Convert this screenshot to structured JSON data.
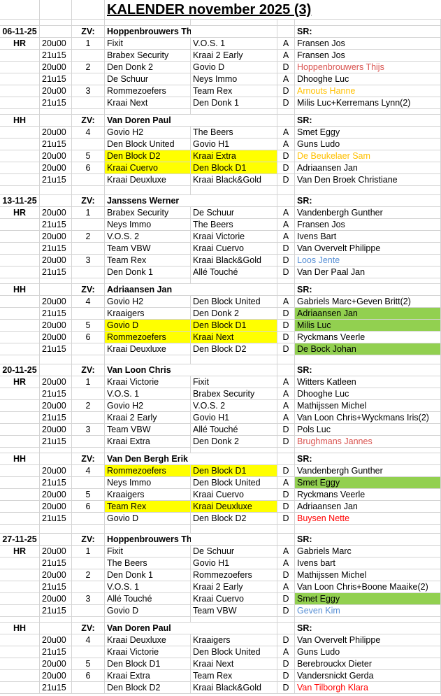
{
  "title": "KALENDER november 2025 (3)",
  "labels": {
    "zv": "ZV:",
    "sr": "SR:"
  },
  "colors": {
    "highlight_match": "#ffff00",
    "highlight_ref": "#92d050",
    "ref_red_soft": "#d9534f",
    "ref_red": "#ff0000",
    "ref_orange": "#ffc000",
    "ref_blue": "#558ed5"
  },
  "weeks": [
    {
      "date": "06-11-25",
      "blocks": [
        {
          "hall": "HR",
          "zv": "Hoppenbrouwers Thijs",
          "games": [
            {
              "time": "20u00",
              "field": "1",
              "home": "Fixit",
              "away": "V.O.S. 1",
              "div": "A",
              "ref": "Fransen Jos"
            },
            {
              "time": "21u15",
              "field": "",
              "home": "Brabex Security",
              "away": "Kraai 2 Early",
              "div": "A",
              "ref": "Fransen Jos"
            },
            {
              "time": "20u00",
              "field": "2",
              "home": "Den Donk 2",
              "away": "Govio D",
              "div": "D",
              "ref": "Hoppenbrouwers Thijs",
              "ref_color": "#d9534f"
            },
            {
              "time": "21u15",
              "field": "",
              "home": "De Schuur",
              "away": "Neys Immo",
              "div": "A",
              "ref": "Dhooghe Luc"
            },
            {
              "time": "20u00",
              "field": "3",
              "home": "Rommezoefers",
              "away": "Team Rex",
              "div": "D",
              "ref": "Arnouts Hanne",
              "ref_color": "#ffc000"
            },
            {
              "time": "21u15",
              "field": "",
              "home": "Kraai Next",
              "away": "Den Donk 1",
              "div": "D",
              "ref": "Milis Luc+Kerremans Lynn(2)"
            }
          ]
        },
        {
          "hall": "HH",
          "zv": "Van Doren Paul",
          "games": [
            {
              "time": "20u00",
              "field": "4",
              "home": "Govio H2",
              "away": "The Beers",
              "div": "A",
              "ref": "Smet Eggy"
            },
            {
              "time": "21u15",
              "field": "",
              "home": "Den Block United",
              "away": "Govio H1",
              "div": "A",
              "ref": "Guns Ludo"
            },
            {
              "time": "20u00",
              "field": "5",
              "home": "Den Block D2",
              "away": "Kraai Extra",
              "div": "D",
              "ref": "De Beukelaer Sam",
              "ref_color": "#ffc000",
              "match_hl": true
            },
            {
              "time": "20u00",
              "field": "6",
              "home": "Kraai Cuervo",
              "away": "Den Block D1",
              "div": "D",
              "ref": "Adriaansen Jan",
              "match_hl": true
            },
            {
              "time": "21u15",
              "field": "",
              "home": "Kraai Deuxluxe",
              "away": "Kraai Black&Gold",
              "div": "D",
              "ref": "Van Den Broek Christiane"
            }
          ]
        }
      ]
    },
    {
      "date": "13-11-25",
      "blocks": [
        {
          "hall": "HR",
          "zv": "Janssens Werner",
          "games": [
            {
              "time": "20u00",
              "field": "1",
              "home": "Brabex Security",
              "away": "De Schuur",
              "div": "A",
              "ref": "Vandenbergh Gunther"
            },
            {
              "time": "21u15",
              "field": "",
              "home": "Neys Immo",
              "away": "The Beers",
              "div": "A",
              "ref": "Fransen Jos"
            },
            {
              "time": "20u00",
              "field": "2",
              "home": "V.O.S. 2",
              "away": "Kraai Victorie",
              "div": "A",
              "ref": "Ivens Bart"
            },
            {
              "time": "21u15",
              "field": "",
              "home": "Team VBW",
              "away": "Kraai Cuervo",
              "div": "D",
              "ref": "Van Overvelt Philippe"
            },
            {
              "time": "20u00",
              "field": "3",
              "home": "Team Rex",
              "away": "Kraai Black&Gold",
              "div": "D",
              "ref": "Loos Jente",
              "ref_color": "#558ed5"
            },
            {
              "time": "21u15",
              "field": "",
              "home": "Den Donk 1",
              "away": "Allé Touché",
              "div": "D",
              "ref": "Van Der Paal Jan"
            }
          ]
        },
        {
          "hall": "HH",
          "zv": "Adriaansen Jan",
          "games": [
            {
              "time": "20u00",
              "field": "4",
              "home": "Govio H2",
              "away": "Den Block United",
              "div": "A",
              "ref": "Gabriels Marc+Geven Britt(2)"
            },
            {
              "time": "21u15",
              "field": "",
              "home": "Kraaigers",
              "away": "Den Donk 2",
              "div": "D",
              "ref": "Adriaansen Jan",
              "ref_hl": true
            },
            {
              "time": "20u00",
              "field": "5",
              "home": "Govio D",
              "away": "Den Block D1",
              "div": "D",
              "ref": "Milis Luc",
              "ref_hl": true,
              "match_hl": true
            },
            {
              "time": "20u00",
              "field": "6",
              "home": "Rommezoefers",
              "away": "Kraai Next",
              "div": "D",
              "ref": "Ryckmans Veerle",
              "match_hl": true
            },
            {
              "time": "21u15",
              "field": "",
              "home": "Kraai Deuxluxe",
              "away": "Den Block D2",
              "div": "D",
              "ref": "De Bock Johan",
              "ref_hl": true
            }
          ]
        }
      ]
    },
    {
      "date": "20-11-25",
      "blocks": [
        {
          "hall": "HR",
          "zv": "Van Loon Chris",
          "games": [
            {
              "time": "20u00",
              "field": "1",
              "home": "Kraai Victorie",
              "away": "Fixit",
              "div": "A",
              "ref": "Witters Katleen"
            },
            {
              "time": "21u15",
              "field": "",
              "home": "V.O.S. 1",
              "away": "Brabex Security",
              "div": "A",
              "ref": "Dhooghe Luc"
            },
            {
              "time": "20u00",
              "field": "2",
              "home": "Govio H2",
              "away": "V.O.S. 2",
              "div": "A",
              "ref": "Mathijssen Michel"
            },
            {
              "time": "21u15",
              "field": "",
              "home": "Kraai 2 Early",
              "away": "Govio H1",
              "div": "A",
              "ref": "Van Loon Chris+Wyckmans Iris(2)"
            },
            {
              "time": "20u00",
              "field": "3",
              "home": "Team VBW",
              "away": "Allé Touché",
              "div": "D",
              "ref": "Pols Luc"
            },
            {
              "time": "21u15",
              "field": "",
              "home": "Kraai Extra",
              "away": "Den Donk 2",
              "div": "D",
              "ref": "Brughmans Jannes",
              "ref_color": "#d9534f"
            }
          ]
        },
        {
          "hall": "HH",
          "zv": "Van Den Bergh Erik",
          "games": [
            {
              "time": "20u00",
              "field": "4",
              "home": "Rommezoefers",
              "away": "Den Block D1",
              "div": "D",
              "ref": "Vandenbergh Gunther",
              "match_hl": true
            },
            {
              "time": "21u15",
              "field": "",
              "home": "Neys Immo",
              "away": "Den Block United",
              "div": "A",
              "ref": "Smet Eggy",
              "ref_hl": true
            },
            {
              "time": "20u00",
              "field": "5",
              "home": "Kraaigers",
              "away": "Kraai Cuervo",
              "div": "D",
              "ref": "Ryckmans Veerle"
            },
            {
              "time": "20u00",
              "field": "6",
              "home": "Team Rex",
              "away": "Kraai Deuxluxe",
              "div": "D",
              "ref": "Adriaansen Jan",
              "match_hl": true
            },
            {
              "time": "21u15",
              "field": "",
              "home": "Govio D",
              "away": "Den Block D2",
              "div": "D",
              "ref": "Buysen Nette",
              "ref_color": "#ff0000"
            }
          ]
        }
      ]
    },
    {
      "date": "27-11-25",
      "blocks": [
        {
          "hall": "HR",
          "zv": "Hoppenbrouwers Thijs",
          "games": [
            {
              "time": "20u00",
              "field": "1",
              "home": "Fixit",
              "away": "De Schuur",
              "div": "A",
              "ref": "Gabriels Marc"
            },
            {
              "time": "21u15",
              "field": "",
              "home": "The Beers",
              "away": "Govio H1",
              "div": "A",
              "ref": "Ivens bart"
            },
            {
              "time": "20u00",
              "field": "2",
              "home": "Den Donk 1",
              "away": "Rommezoefers",
              "div": "D",
              "ref": "Mathijssen Michel"
            },
            {
              "time": "21u15",
              "field": "",
              "home": "V.O.S. 1",
              "away": "Kraai 2 Early",
              "div": "A",
              "ref": "Van Loon Chris+Boone Maaike(2)"
            },
            {
              "time": "20u00",
              "field": "3",
              "home": "Allé Touché",
              "away": "Kraai Cuervo",
              "div": "D",
              "ref": "Smet Eggy",
              "ref_hl": true
            },
            {
              "time": "21u15",
              "field": "",
              "home": "Govio D",
              "away": "Team VBW",
              "div": "D",
              "ref": "Geven Kim",
              "ref_color": "#558ed5"
            }
          ]
        },
        {
          "hall": "HH",
          "zv": "Van Doren Paul",
          "games": [
            {
              "time": "20u00",
              "field": "4",
              "home": "Kraai Deuxluxe",
              "away": "Kraaigers",
              "div": "D",
              "ref": "Van Overvelt Philippe"
            },
            {
              "time": "21u15",
              "field": "",
              "home": "Kraai Victorie",
              "away": "Den Block United",
              "div": "A",
              "ref": "Guns Ludo"
            },
            {
              "time": "20u00",
              "field": "5",
              "home": "Den Block D1",
              "away": "Kraai Next",
              "div": "D",
              "ref": "Berebrouckx Dieter"
            },
            {
              "time": "20u00",
              "field": "6",
              "home": "Kraai Extra",
              "away": "Team Rex",
              "div": "D",
              "ref": "Vandersnickt Gerda"
            },
            {
              "time": "21u15",
              "field": "",
              "home": "Den Block D2",
              "away": "Kraai Black&Gold",
              "div": "D",
              "ref": "Van Tilborgh Klara",
              "ref_color": "#ff0000"
            }
          ]
        }
      ]
    }
  ]
}
